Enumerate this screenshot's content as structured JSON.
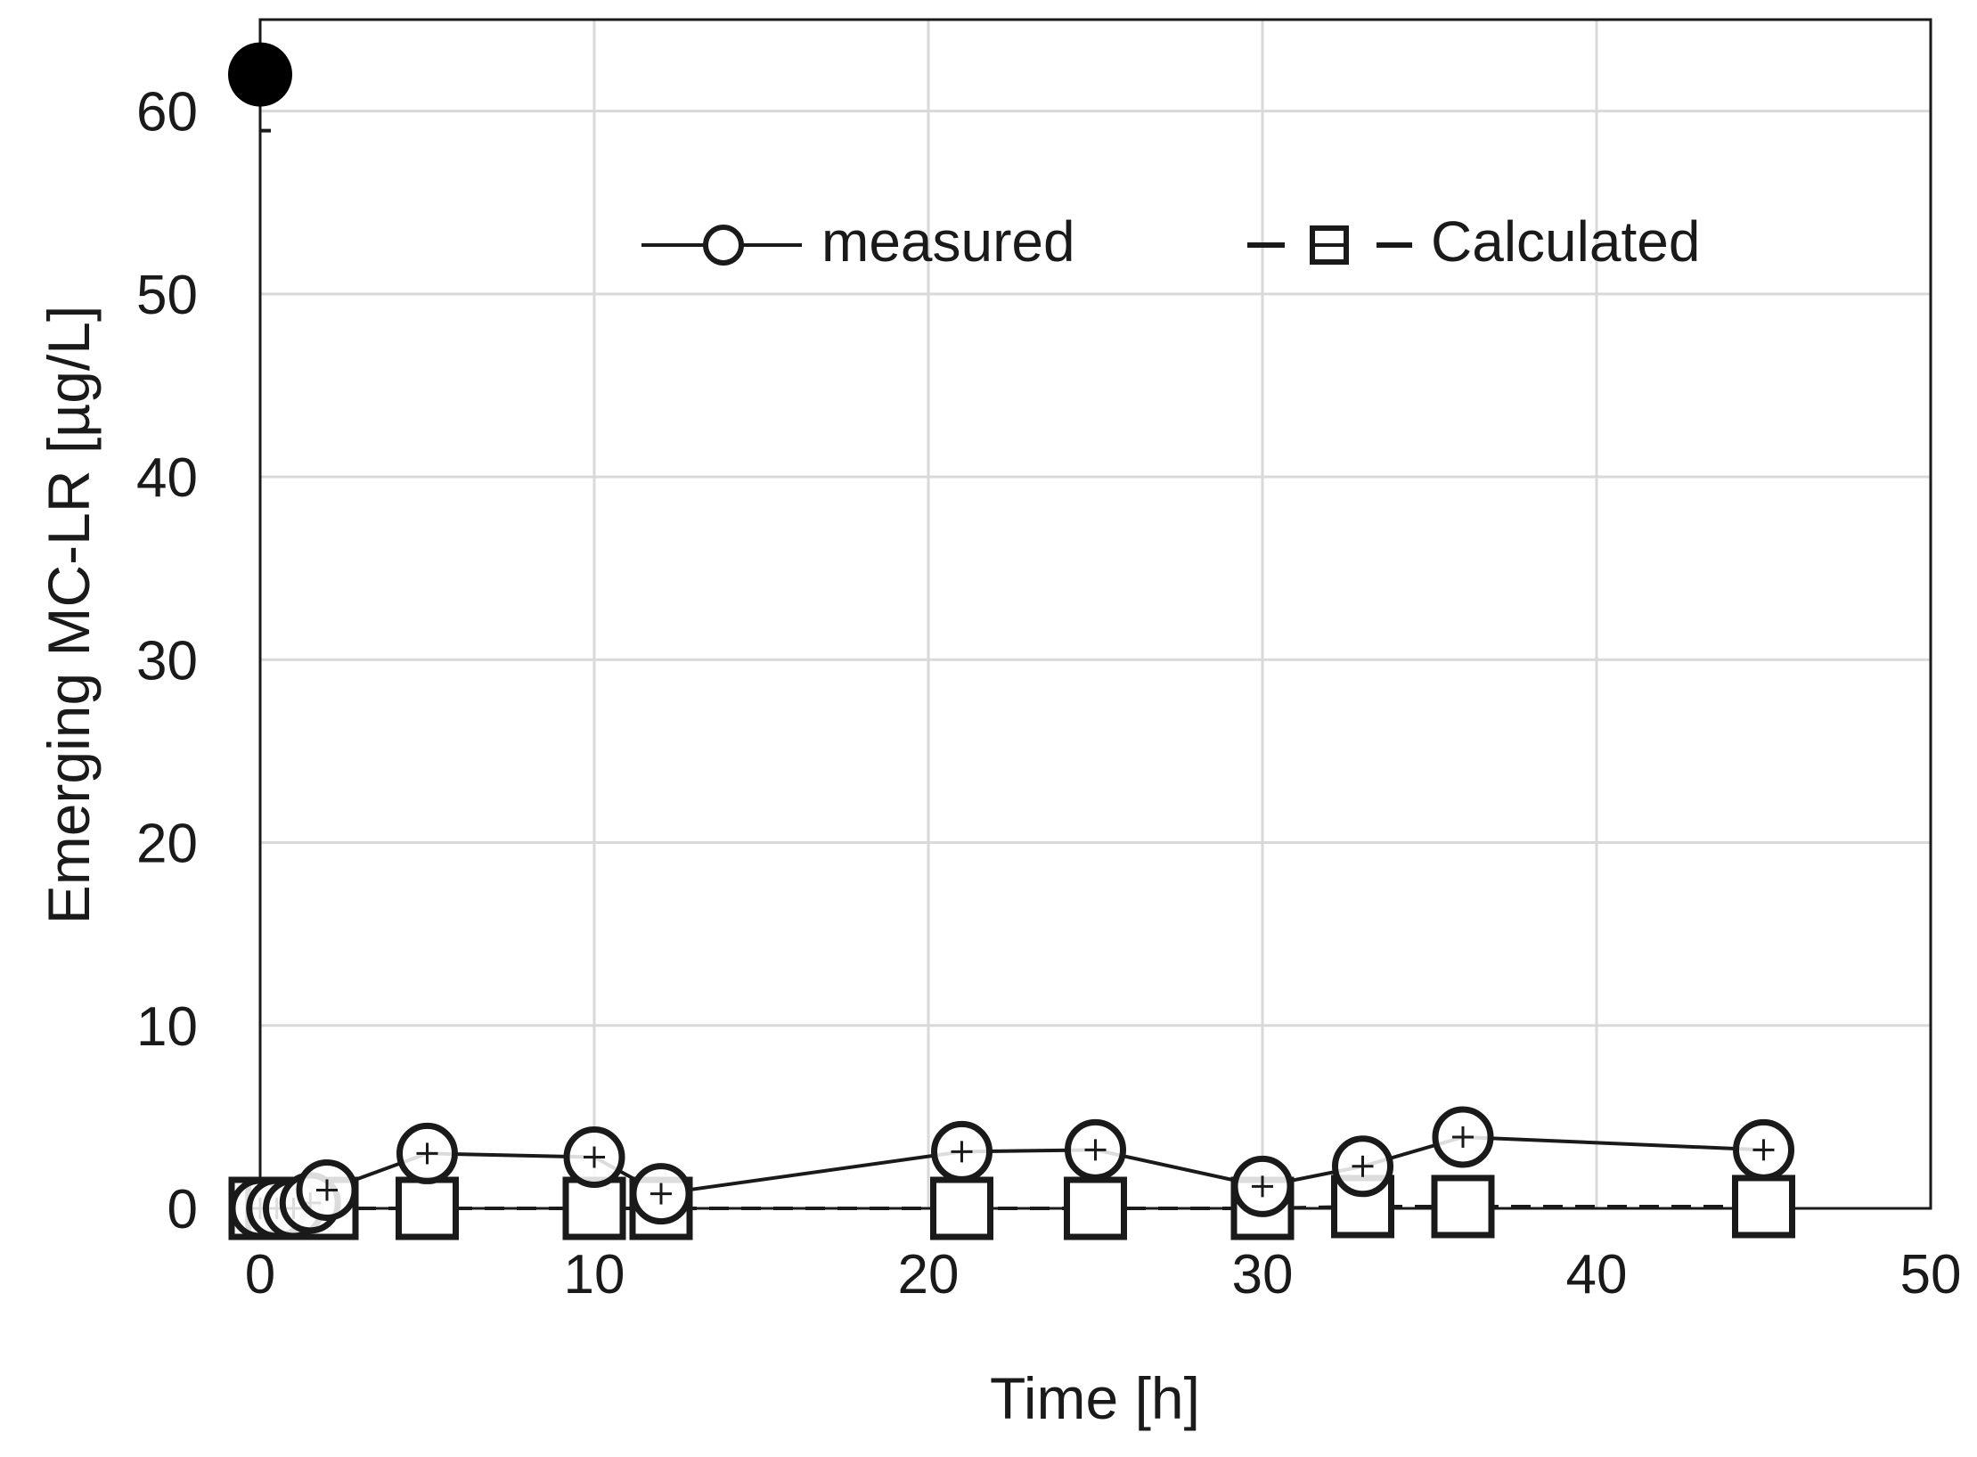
{
  "chart_data": {
    "type": "line",
    "title": "",
    "xlabel": "Time [h]",
    "ylabel": "Emerging MC-LR  [µg/L]",
    "xlim": [
      0,
      50
    ],
    "ylim": [
      0,
      65
    ],
    "x_ticks": [
      "0",
      "10",
      "20",
      "30",
      "40",
      "50"
    ],
    "y_ticks": [
      "0",
      "10",
      "20",
      "30",
      "40",
      "50",
      "60"
    ],
    "x_tick_values": [
      0,
      10,
      20,
      30,
      40,
      50
    ],
    "y_tick_values": [
      0,
      10,
      20,
      30,
      40,
      50,
      60
    ],
    "grid": true,
    "legend_position": "top-right",
    "highlight_point": {
      "x": 0,
      "y": 62
    },
    "series": [
      {
        "name": "measured",
        "line": "solid",
        "marker": "circle",
        "x": [
          0,
          0.5,
          1,
          1.5,
          2,
          5,
          10,
          12,
          21,
          25,
          30,
          33,
          36,
          45
        ],
        "y": [
          0,
          0,
          0,
          0.3,
          1.0,
          3.0,
          2.8,
          0.8,
          3.1,
          3.2,
          1.2,
          2.3,
          3.9,
          3.2
        ]
      },
      {
        "name": "Calculated",
        "line": "dashed",
        "marker": "square",
        "x": [
          0,
          0.5,
          1,
          1.5,
          2,
          5,
          10,
          12,
          21,
          25,
          30,
          33,
          36,
          45
        ],
        "y": [
          0,
          0,
          0,
          0,
          0,
          0,
          0,
          0,
          0,
          0,
          0,
          0.1,
          0.1,
          0.1
        ]
      }
    ]
  }
}
